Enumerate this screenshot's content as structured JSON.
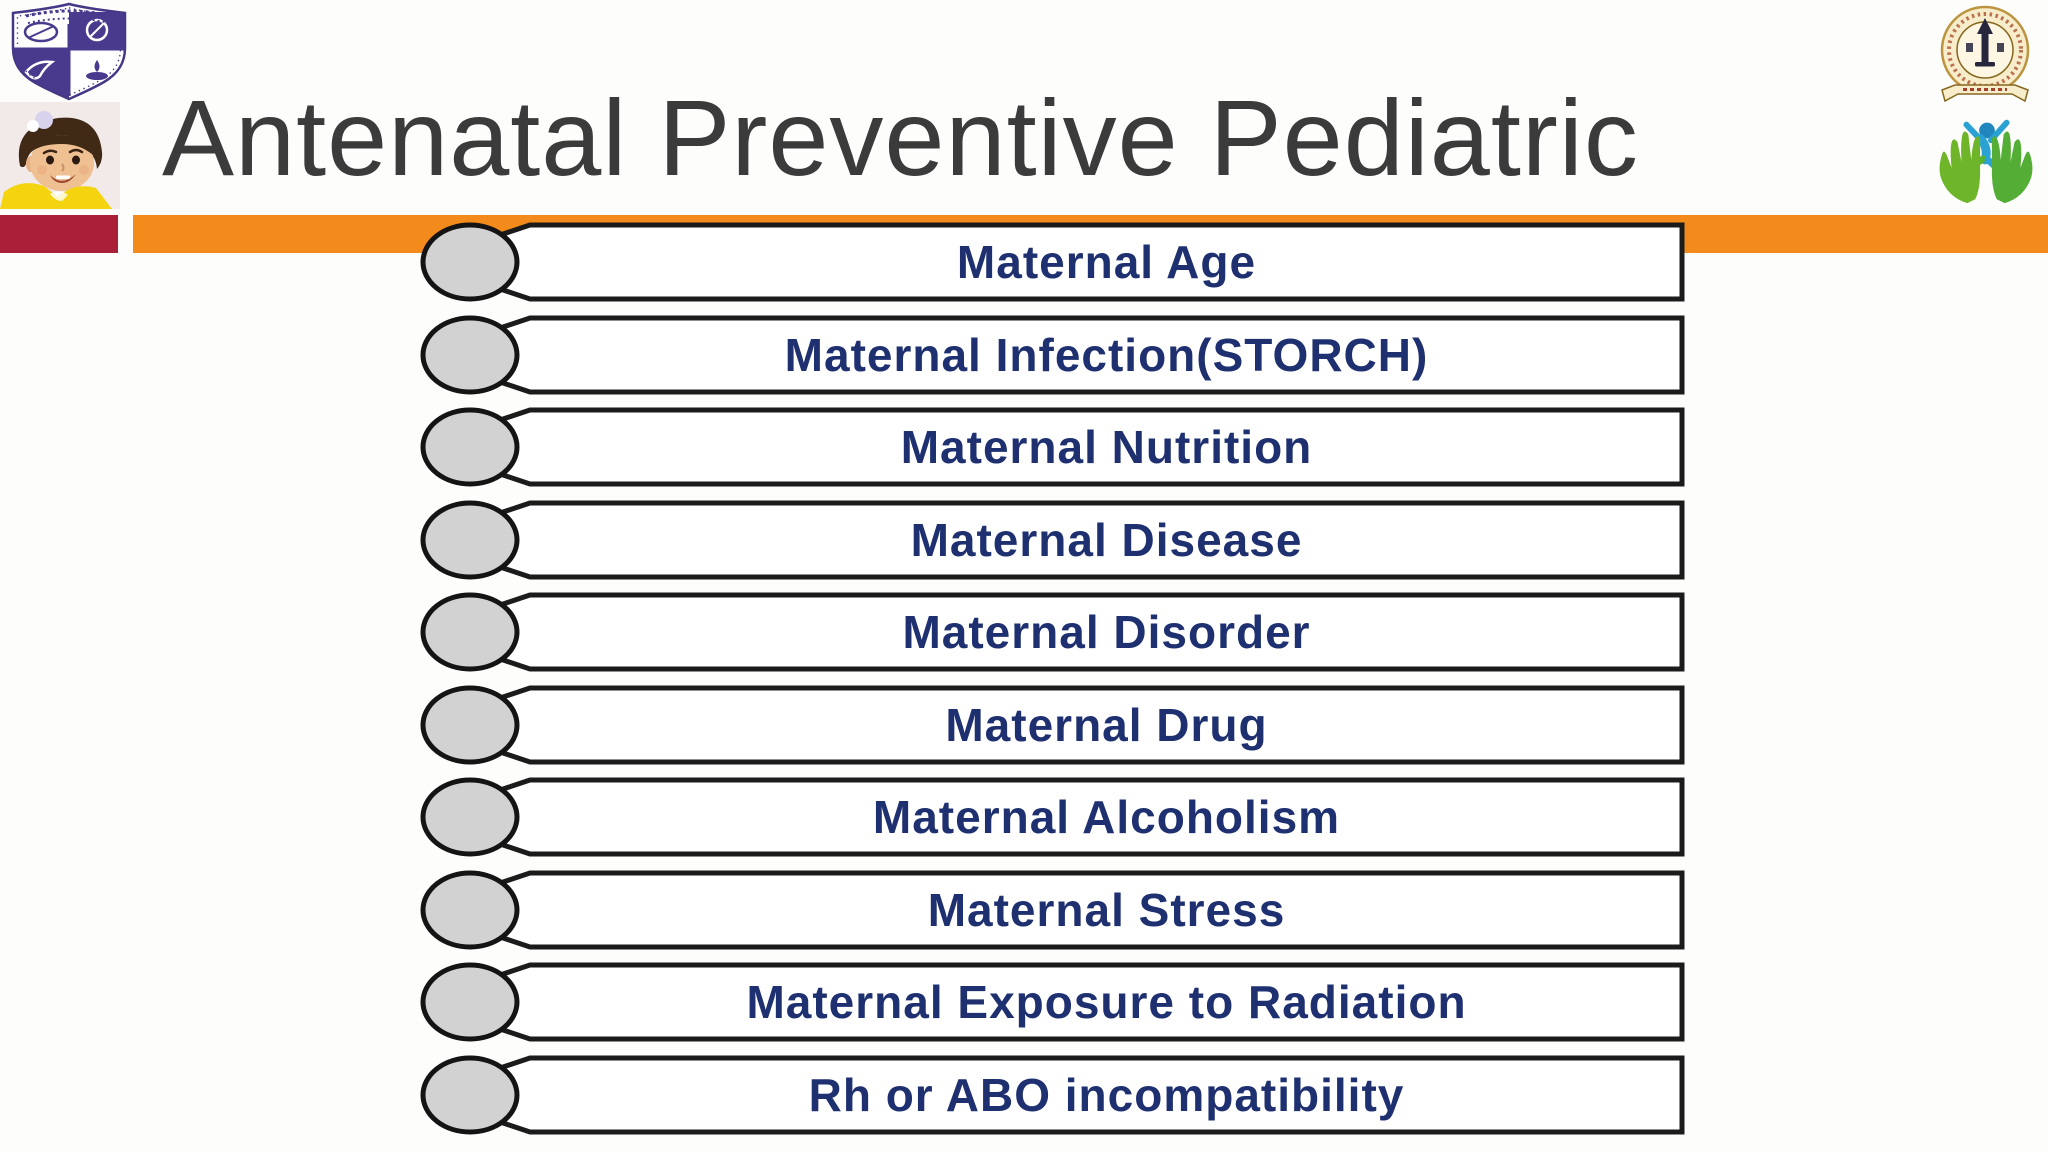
{
  "slide": {
    "title": "Antenatal Preventive Pediatric",
    "items": [
      "Maternal Age",
      "Maternal Infection(STORCH)",
      "Maternal Nutrition",
      "Maternal Disease",
      "Maternal Disorder",
      "Maternal Drug",
      "Maternal Alcoholism",
      "Maternal Stress",
      "Maternal Exposure to Radiation",
      "Rh or ABO incompatibility"
    ],
    "icons": {
      "top_left_upper": "college-shield-logo",
      "top_left_lower": "baby-photo",
      "top_right_upper": "medical-society-emblem",
      "top_right_lower": "caring-hands-logo",
      "list_bullet": "gray-ellipse-bullet"
    },
    "colors": {
      "accent_orange": "#F28A1C",
      "accent_maroon": "#A92038",
      "item_text_navy": "#1E3070",
      "item_border": "#1B1B1B",
      "bullet_gray": "#D2D2D2",
      "title_gray": "#3B3B3B"
    }
  }
}
